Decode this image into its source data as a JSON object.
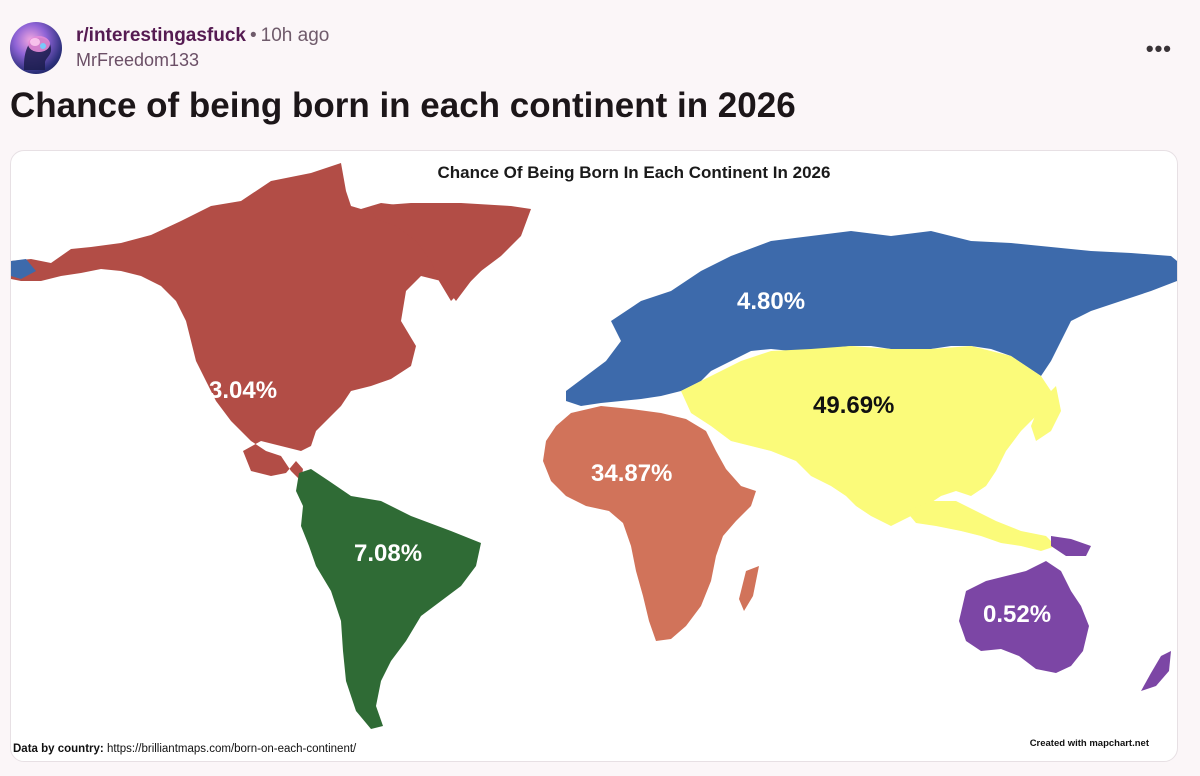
{
  "post": {
    "subreddit": "r/interestingasfuck",
    "separator": "•",
    "time_ago": "10h ago",
    "author": "MrFreedom133",
    "more_label": "•••",
    "title": "Chance of being born in each continent in 2026"
  },
  "map": {
    "title": "Chance Of Being Born In Each Continent In 2026",
    "footer_label": "Data by country:",
    "footer_url": "https://brilliantmaps.com/born-on-each-continent/",
    "credit": "Created with mapchart.net",
    "continents": [
      {
        "name": "North America",
        "label": "3.04%",
        "color": "#b24d46"
      },
      {
        "name": "Europe",
        "label": "4.80%",
        "color": "#3d6aab"
      },
      {
        "name": "Asia",
        "label": "49.69%",
        "color": "#fbfb7a"
      },
      {
        "name": "Africa",
        "label": "34.87%",
        "color": "#d1735a"
      },
      {
        "name": "South America",
        "label": "7.08%",
        "color": "#2f6b35"
      },
      {
        "name": "Oceania",
        "label": "0.52%",
        "color": "#7c46a5"
      }
    ]
  }
}
